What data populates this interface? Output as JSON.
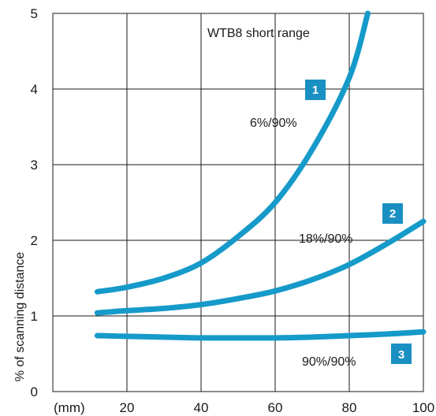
{
  "chart_data": {
    "type": "line",
    "title": "WTB8 short range",
    "xlabel": "",
    "x_unit_label": "(mm)",
    "ylabel": "% of scanning distance",
    "xlim": [
      0,
      100
    ],
    "ylim": [
      0,
      5
    ],
    "x_ticks": [
      "20",
      "40",
      "60",
      "80",
      "100"
    ],
    "y_ticks": [
      "0",
      "1",
      "2",
      "3",
      "4",
      "5"
    ],
    "grid": true,
    "series": [
      {
        "badge": "1",
        "label": "6%/90%",
        "x": [
          12,
          20,
          30,
          40,
          50,
          60,
          70,
          80,
          85
        ],
        "y": [
          1.32,
          1.38,
          1.5,
          1.7,
          2.05,
          2.5,
          3.2,
          4.15,
          5.0
        ]
      },
      {
        "badge": "2",
        "label": "18%/90%",
        "x": [
          12,
          20,
          30,
          40,
          50,
          60,
          70,
          80,
          90,
          100
        ],
        "y": [
          1.04,
          1.07,
          1.1,
          1.15,
          1.23,
          1.33,
          1.48,
          1.68,
          1.95,
          2.25
        ]
      },
      {
        "badge": "3",
        "label": "90%/90%",
        "x": [
          12,
          20,
          30,
          40,
          50,
          60,
          70,
          80,
          90,
          100
        ],
        "y": [
          0.74,
          0.73,
          0.72,
          0.71,
          0.71,
          0.71,
          0.72,
          0.74,
          0.76,
          0.79
        ]
      }
    ],
    "colors": {
      "line": "#159ac9",
      "badge": "#1a8fc2",
      "grid": "#1a1a1a"
    }
  }
}
